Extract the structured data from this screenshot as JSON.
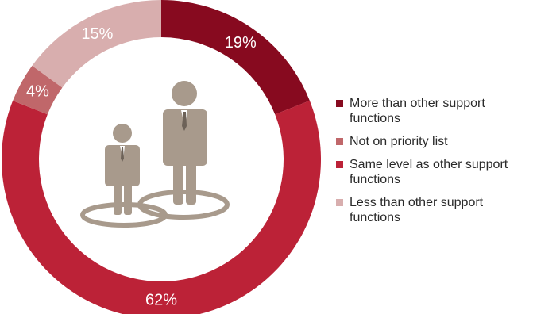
{
  "chart_data": {
    "type": "pie",
    "donut": true,
    "title": "",
    "categories": [
      "More than other support functions",
      "Not on priority list",
      "Same level as other support functions",
      "Less than other support functions"
    ],
    "slices": [
      {
        "label": "More than other support functions",
        "value": 19,
        "display": "19%",
        "color": "#870a1f"
      },
      {
        "label": "Same level as other support functions",
        "value": 62,
        "display": "62%",
        "color": "#bc2237"
      },
      {
        "label": "Not on priority list",
        "value": 4,
        "display": "4%",
        "color": "#c0676a"
      },
      {
        "label": "Less than other support functions",
        "value": 15,
        "display": "15%",
        "color": "#d8aeae"
      }
    ],
    "legend": {
      "placement": "right",
      "items": [
        {
          "label": "More than other support functions",
          "color": "#870a1f"
        },
        {
          "label": "Not on priority list",
          "color": "#c0676a"
        },
        {
          "label": "Same level as other support functions",
          "color": "#bc2237"
        },
        {
          "label": "Less than other support functions",
          "color": "#d8aeae"
        }
      ]
    },
    "center_icon": "two-business-people-icon",
    "icon_color": "#a89a8c"
  }
}
